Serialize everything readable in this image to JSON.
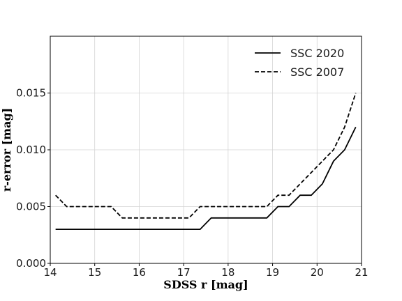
{
  "chart_data": {
    "type": "line",
    "title": "",
    "xlabel": "SDSS r [mag]",
    "ylabel": "r-error [mag]",
    "xlim": [
      14,
      21
    ],
    "ylim": [
      0,
      0.02
    ],
    "x_ticks": [
      "14",
      "15",
      "16",
      "17",
      "18",
      "19",
      "20",
      "21"
    ],
    "x_tick_values": [
      14,
      15,
      16,
      17,
      18,
      19,
      20,
      21
    ],
    "y_ticks": [
      "0.000",
      "0.005",
      "0.010",
      "0.015"
    ],
    "y_tick_values": [
      0,
      0.005,
      0.01,
      0.015
    ],
    "grid": true,
    "legend_position": "top-right",
    "series": [
      {
        "name": "SSC 2020",
        "line_style": "solid",
        "color": "#000000",
        "points": [
          [
            14.12,
            0.003
          ],
          [
            14.37,
            0.003
          ],
          [
            14.62,
            0.003
          ],
          [
            14.87,
            0.003
          ],
          [
            15.12,
            0.003
          ],
          [
            15.37,
            0.003
          ],
          [
            15.62,
            0.003
          ],
          [
            15.87,
            0.003
          ],
          [
            16.12,
            0.003
          ],
          [
            16.37,
            0.003
          ],
          [
            16.62,
            0.003
          ],
          [
            16.87,
            0.003
          ],
          [
            17.12,
            0.003
          ],
          [
            17.37,
            0.003
          ],
          [
            17.62,
            0.004
          ],
          [
            17.87,
            0.004
          ],
          [
            18.12,
            0.004
          ],
          [
            18.37,
            0.004
          ],
          [
            18.62,
            0.004
          ],
          [
            18.87,
            0.004
          ],
          [
            19.12,
            0.005
          ],
          [
            19.37,
            0.005
          ],
          [
            19.62,
            0.006
          ],
          [
            19.87,
            0.006
          ],
          [
            20.12,
            0.007
          ],
          [
            20.37,
            0.009
          ],
          [
            20.62,
            0.01
          ],
          [
            20.87,
            0.012
          ]
        ]
      },
      {
        "name": "SSC 2007",
        "line_style": "dashed",
        "color": "#000000",
        "points": [
          [
            14.12,
            0.006
          ],
          [
            14.37,
            0.005
          ],
          [
            14.62,
            0.005
          ],
          [
            14.87,
            0.005
          ],
          [
            15.12,
            0.005
          ],
          [
            15.37,
            0.005
          ],
          [
            15.62,
            0.004
          ],
          [
            15.87,
            0.004
          ],
          [
            16.12,
            0.004
          ],
          [
            16.37,
            0.004
          ],
          [
            16.62,
            0.004
          ],
          [
            16.87,
            0.004
          ],
          [
            17.12,
            0.004
          ],
          [
            17.37,
            0.005
          ],
          [
            17.62,
            0.005
          ],
          [
            17.87,
            0.005
          ],
          [
            18.12,
            0.005
          ],
          [
            18.37,
            0.005
          ],
          [
            18.62,
            0.005
          ],
          [
            18.87,
            0.005
          ],
          [
            19.12,
            0.006
          ],
          [
            19.37,
            0.006
          ],
          [
            19.62,
            0.007
          ],
          [
            19.87,
            0.008
          ],
          [
            20.12,
            0.009
          ],
          [
            20.37,
            0.01
          ],
          [
            20.62,
            0.012
          ],
          [
            20.87,
            0.015
          ]
        ]
      }
    ]
  }
}
